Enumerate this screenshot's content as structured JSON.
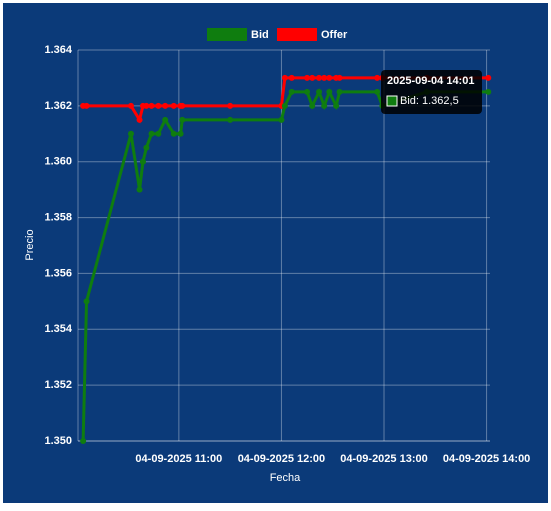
{
  "chart_data": {
    "type": "line",
    "x_label": "Fecha",
    "y_label": "Precio",
    "x": [
      "2025-09-04 10:04",
      "2025-09-04 10:06",
      "2025-09-04 10:32",
      "2025-09-04 10:37",
      "2025-09-04 10:39",
      "2025-09-04 10:41",
      "2025-09-04 10:44",
      "2025-09-04 10:48",
      "2025-09-04 10:52",
      "2025-09-04 10:57",
      "2025-09-04 11:01",
      "2025-09-04 11:02",
      "2025-09-04 11:30",
      "2025-09-04 12:00",
      "2025-09-04 12:02",
      "2025-09-04 12:06",
      "2025-09-04 12:15",
      "2025-09-04 12:18",
      "2025-09-04 12:22",
      "2025-09-04 12:25",
      "2025-09-04 12:28",
      "2025-09-04 12:32",
      "2025-09-04 12:34",
      "2025-09-04 12:56",
      "2025-09-04 12:59",
      "2025-09-04 13:25",
      "2025-09-04 14:01"
    ],
    "series": [
      {
        "name": "Bid",
        "color": "#0f7d0f",
        "values": [
          1350,
          1355,
          1361,
          1359,
          1360,
          1360.5,
          1361,
          1361,
          1361.5,
          1361,
          1361,
          1361.5,
          1361.5,
          1361.5,
          1362,
          1362.5,
          1362.5,
          1362,
          1362.5,
          1362,
          1362.5,
          1362,
          1362.5,
          1362.5,
          1362,
          1362.5,
          1362.5
        ]
      },
      {
        "name": "Offer",
        "color": "#ff0000",
        "values": [
          1362,
          1362,
          1362,
          1361.5,
          1362,
          1362,
          1362,
          1362,
          1362,
          1362,
          1362,
          1362,
          1362,
          1362,
          1363,
          1363,
          1363,
          1363,
          1363,
          1363,
          1363,
          1363,
          1363,
          1363,
          1363,
          1363,
          1363
        ]
      }
    ],
    "xlim": [
      "2025-09-04 10:01",
      "2025-09-04 14:02"
    ],
    "xticks": [
      {
        "value": "2025-09-04 11:00",
        "label": "04-09-2025 11:00"
      },
      {
        "value": "2025-09-04 12:00",
        "label": "04-09-2025 12:00"
      },
      {
        "value": "2025-09-04 13:00",
        "label": "04-09-2025 13:00"
      },
      {
        "value": "2025-09-04 14:00",
        "label": "04-09-2025 14:00"
      }
    ],
    "ylim": [
      1350,
      1364
    ],
    "yticks": [
      {
        "value": 1350,
        "label": "1.350"
      },
      {
        "value": 1352,
        "label": "1.352"
      },
      {
        "value": 1354,
        "label": "1.354"
      },
      {
        "value": 1356,
        "label": "1.356"
      },
      {
        "value": 1358,
        "label": "1.358"
      },
      {
        "value": 1360,
        "label": "1.360"
      },
      {
        "value": 1362,
        "label": "1.362"
      },
      {
        "value": 1364,
        "label": "1.364"
      }
    ],
    "grid": true,
    "legend": "top",
    "tooltip": {
      "title": "2025-09-04 14:01",
      "label": "Bid: 1.362,5"
    }
  }
}
